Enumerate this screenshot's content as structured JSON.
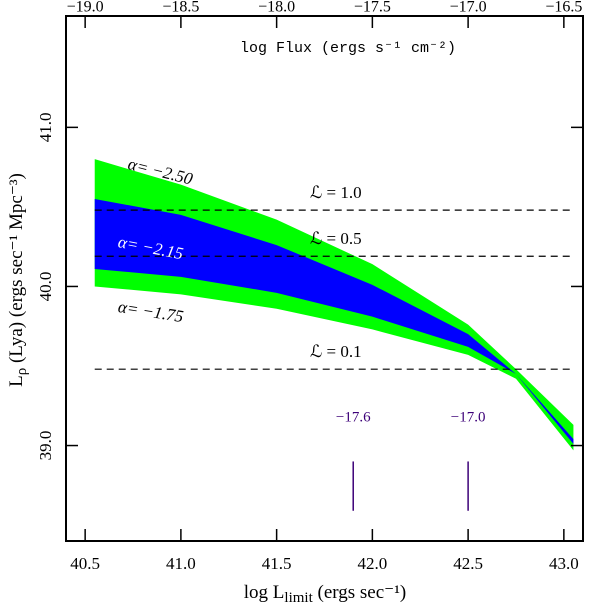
{
  "chart_data": {
    "type": "band",
    "top_axis_label": "log Flux (ergs s⁻¹ cm⁻²)",
    "xlabel": {
      "main": "log L",
      "sub": "limit",
      "rest": " (ergs sec⁻¹)"
    },
    "ylabel": {
      "main": "L",
      "sub": "ρ",
      "rest": " (Lya) (ergs sec⁻¹ Mpc⁻³)"
    },
    "xlim": [
      40.4,
      43.1
    ],
    "xticks": [
      40.5,
      {
        "value": 41,
        "label": "41.0"
      },
      41.5,
      {
        "value": 42,
        "label": "42.0"
      },
      42.5,
      {
        "value": 43,
        "label": "43.0"
      }
    ],
    "x2lim": [
      -19.1,
      -16.4
    ],
    "x2ticks": [
      {
        "value": -19,
        "label": "−19.0"
      },
      {
        "value": -18.5,
        "label": "−18.5"
      },
      {
        "value": -18,
        "label": "−18.0"
      },
      {
        "value": -17.5,
        "label": "−17.5"
      },
      {
        "value": -17,
        "label": "−17.0"
      },
      {
        "value": -16.5,
        "label": "−16.5"
      }
    ],
    "ylim": [
      38.4,
      41.7
    ],
    "yticks": [
      {
        "value": 39,
        "label": "39.0"
      },
      {
        "value": 40,
        "label": "40.0"
      },
      {
        "value": 41,
        "label": "41.0"
      }
    ],
    "x": [
      40.55,
      41.0,
      41.5,
      42.0,
      42.5,
      42.75,
      43.05
    ],
    "series": [
      {
        "color": "#00ff00",
        "upper": [
          40.8,
          40.64,
          40.42,
          40.14,
          39.76,
          39.48,
          39.13
        ],
        "lower": [
          40.0,
          39.95,
          39.86,
          39.73,
          39.57,
          39.42,
          38.97
        ]
      },
      {
        "color": "#0000ff",
        "upper": [
          40.55,
          40.45,
          40.26,
          40.01,
          39.7,
          39.45,
          39.04
        ],
        "lower": [
          40.11,
          40.06,
          39.96,
          39.81,
          39.62,
          39.45,
          39.01
        ]
      }
    ],
    "hlines": [
      {
        "y": 40.48,
        "text": "ℒ = 1.0"
      },
      {
        "y": 40.19,
        "text": "ℒ = 0.5"
      },
      {
        "y": 39.48,
        "text": "ℒ = 0.1"
      }
    ],
    "markers": [
      {
        "x2": -17.6,
        "label": "−17.6",
        "ylim": [
          38.59,
          38.9
        ]
      },
      {
        "x2": -17.0,
        "label": "−17.0",
        "ylim": [
          38.59,
          38.9
        ]
      }
    ],
    "marker_color": "#3c0078",
    "annotations": [
      {
        "text": "α= −2.50",
        "color": "#000000"
      },
      {
        "text": "α= −2.15",
        "color": "#ffffff"
      },
      {
        "text": "α= −1.75",
        "color": "#000000"
      }
    ]
  }
}
